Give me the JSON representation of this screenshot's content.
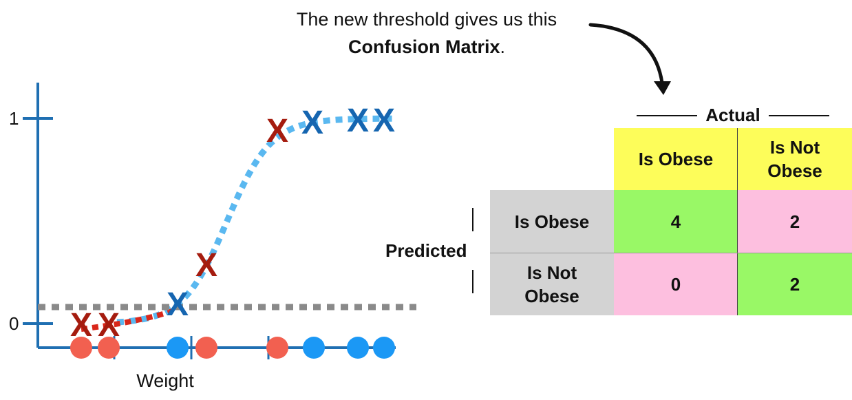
{
  "caption": {
    "line1": "The new threshold gives us this",
    "line2_bold": "Confusion Matrix",
    "line2_suffix": "."
  },
  "chart_data": {
    "type": "scatter",
    "xlabel": "Weight",
    "ylabel": "",
    "y_ticks": [
      "0",
      "1"
    ],
    "ylim": [
      0,
      1
    ],
    "threshold": 0.08,
    "threshold_style": "gray dashed horizontal line",
    "curve": "logistic, dotted blue; red dotted segment below threshold",
    "points": [
      {
        "x": 1,
        "y": 0.0,
        "label": "X",
        "color": "#a51c0f",
        "class": "obese"
      },
      {
        "x": 2,
        "y": 0.0,
        "label": "X",
        "color": "#a51c0f",
        "class": "obese"
      },
      {
        "x": 3,
        "y": 0.1,
        "label": "X",
        "color": "#1565b0",
        "class": "not obese"
      },
      {
        "x": 4,
        "y": 0.3,
        "label": "X",
        "color": "#a51c0f",
        "class": "obese"
      },
      {
        "x": 5,
        "y": 0.94,
        "label": "X",
        "color": "#a51c0f",
        "class": "obese"
      },
      {
        "x": 6,
        "y": 0.98,
        "label": "X",
        "color": "#1565b0",
        "class": "not obese"
      },
      {
        "x": 7,
        "y": 0.99,
        "label": "X",
        "color": "#1565b0",
        "class": "not obese"
      },
      {
        "x": 8,
        "y": 0.99,
        "label": "X",
        "color": "#1565b0",
        "class": "not obese"
      }
    ],
    "axis_dots": [
      {
        "color": "#f26050"
      },
      {
        "color": "#f26050"
      },
      {
        "color": "#1b98f5"
      },
      {
        "color": "#f26050"
      },
      {
        "color": "#f26050"
      },
      {
        "color": "#1b98f5"
      },
      {
        "color": "#1b98f5"
      },
      {
        "color": "#1b98f5"
      }
    ]
  },
  "matrix": {
    "actual_label": "Actual",
    "predicted_label": "Predicted",
    "col_headers": [
      "Is Obese",
      "Is Not Obese"
    ],
    "col_header_lines": [
      [
        "Is Obese"
      ],
      [
        "Is Not",
        "Obese"
      ]
    ],
    "row_headers": [
      "Is Obese",
      "Is Not Obese"
    ],
    "row_header_lines": [
      [
        "Is Obese"
      ],
      [
        "Is Not",
        "Obese"
      ]
    ],
    "values": [
      [
        "4",
        "2"
      ],
      [
        "0",
        "2"
      ]
    ],
    "cell_colors": [
      [
        "#99f866",
        "#fdbfdf"
      ],
      [
        "#fdbfdf",
        "#99f866"
      ]
    ],
    "header_color": "#fdfd5a",
    "row_header_color": "#d3d3d3"
  }
}
